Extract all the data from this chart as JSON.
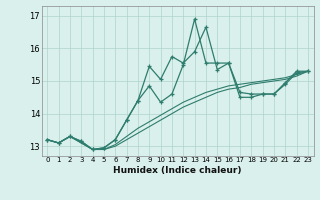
{
  "xlabel": "Humidex (Indice chaleur)",
  "bg_color": "#daf0ec",
  "line_color": "#2e7d6e",
  "grid_color": "#aed4cc",
  "xlim": [
    -0.5,
    23.5
  ],
  "ylim": [
    12.7,
    17.3
  ],
  "yticks": [
    13,
    14,
    15,
    16,
    17
  ],
  "xticks": [
    0,
    1,
    2,
    3,
    4,
    5,
    6,
    7,
    8,
    9,
    10,
    11,
    12,
    13,
    14,
    15,
    16,
    17,
    18,
    19,
    20,
    21,
    22,
    23
  ],
  "series": [
    {
      "y": [
        13.2,
        13.1,
        13.3,
        13.15,
        12.9,
        12.95,
        13.2,
        13.8,
        14.4,
        15.45,
        15.05,
        15.75,
        15.55,
        15.9,
        16.65,
        15.35,
        15.55,
        14.5,
        14.5,
        14.6,
        14.6,
        14.9,
        15.25,
        15.3
      ],
      "marker": "+",
      "lw": 0.9
    },
    {
      "y": [
        13.2,
        13.1,
        13.3,
        13.15,
        12.9,
        12.95,
        13.2,
        13.8,
        14.4,
        14.85,
        14.35,
        14.6,
        15.5,
        16.9,
        15.55,
        15.55,
        15.55,
        14.65,
        14.6,
        14.6,
        14.6,
        14.95,
        15.3,
        15.3
      ],
      "marker": "+",
      "lw": 0.9
    },
    {
      "y": [
        13.2,
        13.1,
        13.3,
        13.1,
        12.9,
        12.9,
        13.0,
        13.2,
        13.4,
        13.6,
        13.8,
        14.0,
        14.2,
        14.35,
        14.5,
        14.65,
        14.75,
        14.8,
        14.9,
        14.95,
        15.0,
        15.05,
        15.15,
        15.3
      ],
      "marker": null,
      "lw": 0.8
    },
    {
      "y": [
        13.2,
        13.1,
        13.3,
        13.1,
        12.9,
        12.9,
        13.05,
        13.3,
        13.55,
        13.75,
        13.95,
        14.15,
        14.35,
        14.5,
        14.65,
        14.75,
        14.85,
        14.9,
        14.95,
        15.0,
        15.05,
        15.1,
        15.2,
        15.3
      ],
      "marker": null,
      "lw": 0.8
    }
  ]
}
